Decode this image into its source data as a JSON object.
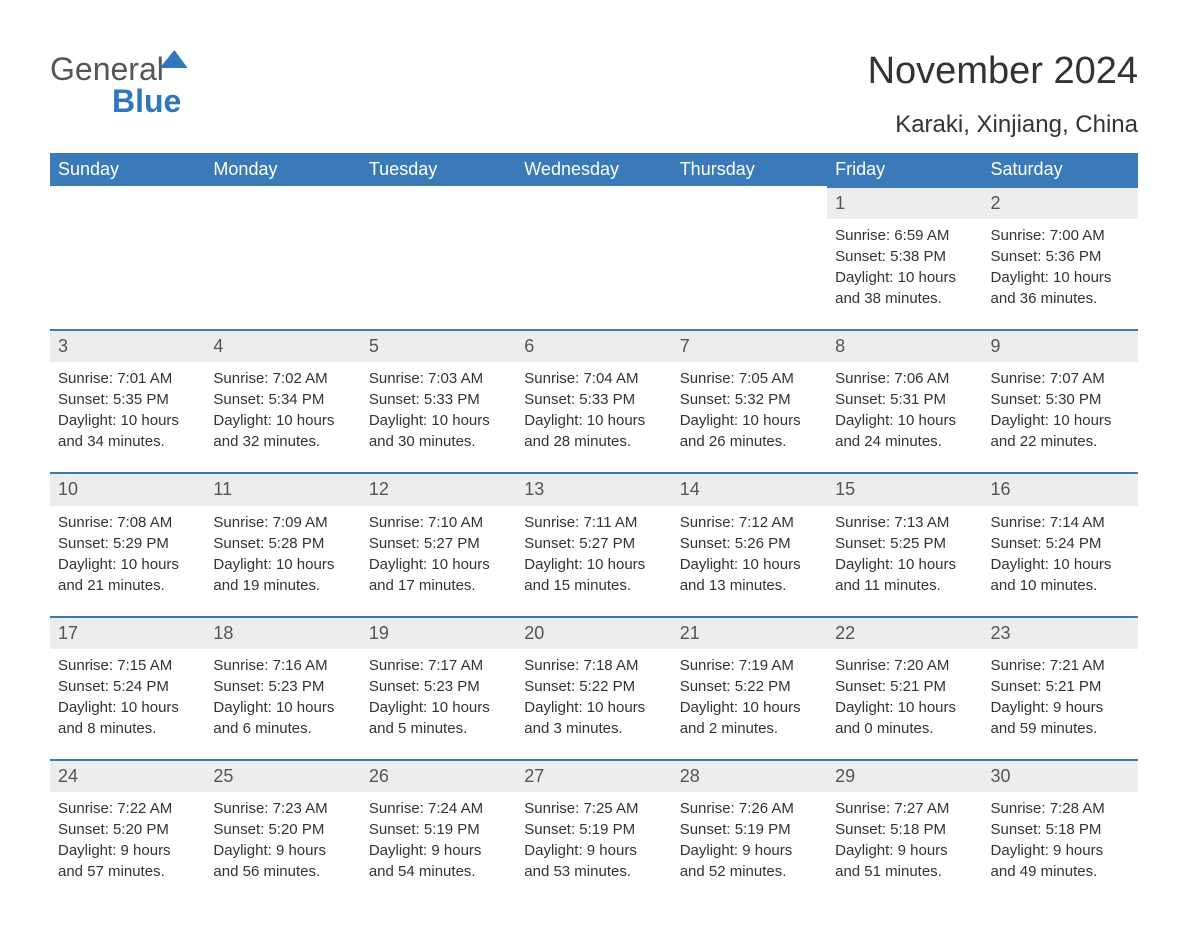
{
  "logo": {
    "general": "General",
    "blue": "Blue"
  },
  "header": {
    "month_title": "November 2024",
    "location": "Karaki, Xinjiang, China"
  },
  "colors": {
    "header_bg": "#3a7ab8",
    "header_text": "#ffffff",
    "daynum_bg": "#ededed",
    "row_border": "#3a7ab8",
    "body_text": "#333333",
    "logo_blue": "#2f78bd"
  },
  "days_of_week": [
    "Sunday",
    "Monday",
    "Tuesday",
    "Wednesday",
    "Thursday",
    "Friday",
    "Saturday"
  ],
  "first_weekday_index": 5,
  "days": [
    {
      "n": 1,
      "sunrise": "6:59 AM",
      "sunset": "5:38 PM",
      "daylight": "10 hours and 38 minutes."
    },
    {
      "n": 2,
      "sunrise": "7:00 AM",
      "sunset": "5:36 PM",
      "daylight": "10 hours and 36 minutes."
    },
    {
      "n": 3,
      "sunrise": "7:01 AM",
      "sunset": "5:35 PM",
      "daylight": "10 hours and 34 minutes."
    },
    {
      "n": 4,
      "sunrise": "7:02 AM",
      "sunset": "5:34 PM",
      "daylight": "10 hours and 32 minutes."
    },
    {
      "n": 5,
      "sunrise": "7:03 AM",
      "sunset": "5:33 PM",
      "daylight": "10 hours and 30 minutes."
    },
    {
      "n": 6,
      "sunrise": "7:04 AM",
      "sunset": "5:33 PM",
      "daylight": "10 hours and 28 minutes."
    },
    {
      "n": 7,
      "sunrise": "7:05 AM",
      "sunset": "5:32 PM",
      "daylight": "10 hours and 26 minutes."
    },
    {
      "n": 8,
      "sunrise": "7:06 AM",
      "sunset": "5:31 PM",
      "daylight": "10 hours and 24 minutes."
    },
    {
      "n": 9,
      "sunrise": "7:07 AM",
      "sunset": "5:30 PM",
      "daylight": "10 hours and 22 minutes."
    },
    {
      "n": 10,
      "sunrise": "7:08 AM",
      "sunset": "5:29 PM",
      "daylight": "10 hours and 21 minutes."
    },
    {
      "n": 11,
      "sunrise": "7:09 AM",
      "sunset": "5:28 PM",
      "daylight": "10 hours and 19 minutes."
    },
    {
      "n": 12,
      "sunrise": "7:10 AM",
      "sunset": "5:27 PM",
      "daylight": "10 hours and 17 minutes."
    },
    {
      "n": 13,
      "sunrise": "7:11 AM",
      "sunset": "5:27 PM",
      "daylight": "10 hours and 15 minutes."
    },
    {
      "n": 14,
      "sunrise": "7:12 AM",
      "sunset": "5:26 PM",
      "daylight": "10 hours and 13 minutes."
    },
    {
      "n": 15,
      "sunrise": "7:13 AM",
      "sunset": "5:25 PM",
      "daylight": "10 hours and 11 minutes."
    },
    {
      "n": 16,
      "sunrise": "7:14 AM",
      "sunset": "5:24 PM",
      "daylight": "10 hours and 10 minutes."
    },
    {
      "n": 17,
      "sunrise": "7:15 AM",
      "sunset": "5:24 PM",
      "daylight": "10 hours and 8 minutes."
    },
    {
      "n": 18,
      "sunrise": "7:16 AM",
      "sunset": "5:23 PM",
      "daylight": "10 hours and 6 minutes."
    },
    {
      "n": 19,
      "sunrise": "7:17 AM",
      "sunset": "5:23 PM",
      "daylight": "10 hours and 5 minutes."
    },
    {
      "n": 20,
      "sunrise": "7:18 AM",
      "sunset": "5:22 PM",
      "daylight": "10 hours and 3 minutes."
    },
    {
      "n": 21,
      "sunrise": "7:19 AM",
      "sunset": "5:22 PM",
      "daylight": "10 hours and 2 minutes."
    },
    {
      "n": 22,
      "sunrise": "7:20 AM",
      "sunset": "5:21 PM",
      "daylight": "10 hours and 0 minutes."
    },
    {
      "n": 23,
      "sunrise": "7:21 AM",
      "sunset": "5:21 PM",
      "daylight": "9 hours and 59 minutes."
    },
    {
      "n": 24,
      "sunrise": "7:22 AM",
      "sunset": "5:20 PM",
      "daylight": "9 hours and 57 minutes."
    },
    {
      "n": 25,
      "sunrise": "7:23 AM",
      "sunset": "5:20 PM",
      "daylight": "9 hours and 56 minutes."
    },
    {
      "n": 26,
      "sunrise": "7:24 AM",
      "sunset": "5:19 PM",
      "daylight": "9 hours and 54 minutes."
    },
    {
      "n": 27,
      "sunrise": "7:25 AM",
      "sunset": "5:19 PM",
      "daylight": "9 hours and 53 minutes."
    },
    {
      "n": 28,
      "sunrise": "7:26 AM",
      "sunset": "5:19 PM",
      "daylight": "9 hours and 52 minutes."
    },
    {
      "n": 29,
      "sunrise": "7:27 AM",
      "sunset": "5:18 PM",
      "daylight": "9 hours and 51 minutes."
    },
    {
      "n": 30,
      "sunrise": "7:28 AM",
      "sunset": "5:18 PM",
      "daylight": "9 hours and 49 minutes."
    }
  ],
  "labels": {
    "sunrise": "Sunrise: ",
    "sunset": "Sunset: ",
    "daylight": "Daylight: "
  }
}
